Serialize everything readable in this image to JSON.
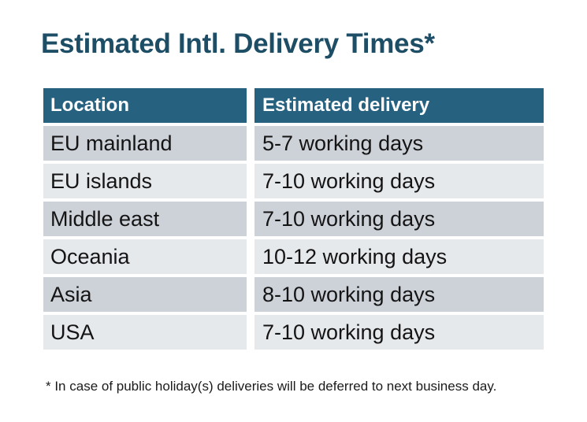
{
  "title": "Estimated Intl. Delivery Times*",
  "table": {
    "columns": [
      "Location",
      "Estimated delivery"
    ],
    "rows": [
      {
        "location": "EU mainland",
        "delivery": "5-7 working days"
      },
      {
        "location": "EU islands",
        "delivery": "7-10 working days"
      },
      {
        "location": "Middle east",
        "delivery": "7-10 working days"
      },
      {
        "location": "Oceania",
        "delivery": "10-12 working days"
      },
      {
        "location": "Asia",
        "delivery": "8-10 working days"
      },
      {
        "location": "USA",
        "delivery": "7-10 working days"
      }
    ]
  },
  "footnote": "* In case of public holiday(s) deliveries will be deferred to next business day.",
  "colors": {
    "title_text": "#1d4e66",
    "header_bg": "#26617f",
    "header_text": "#ffffff",
    "row_dark": "#cdd1d8",
    "row_light": "#e6e9ec",
    "body_text": "#141414",
    "page_bg": "#ffffff"
  }
}
